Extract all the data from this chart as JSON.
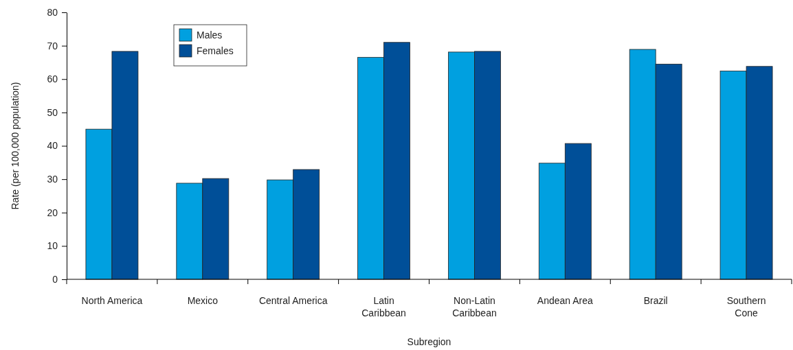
{
  "chart_data": {
    "type": "bar",
    "xlabel": "Subregion",
    "ylabel": "Rate (per 100,000 population)",
    "categories": [
      "North America",
      "Mexico",
      "Central America",
      "Latin\nCaribbean",
      "Non-Latin\nCaribbean",
      "Andean Area",
      "Brazil",
      "Southern\nCone"
    ],
    "series": [
      {
        "name": "Males",
        "color": "#00a0e0",
        "values": [
          45,
          28.8,
          29.8,
          66.5,
          68.1,
          34.8,
          68.9,
          62.4
        ]
      },
      {
        "name": "Females",
        "color": "#004f98",
        "values": [
          68.3,
          30.2,
          32.9,
          71,
          68.3,
          40.7,
          64.5,
          63.8
        ]
      }
    ],
    "ylim": [
      0,
      80
    ],
    "yticks": [
      0,
      10,
      20,
      30,
      40,
      50,
      60,
      70,
      80
    ],
    "grid": false,
    "legend": "top left"
  }
}
